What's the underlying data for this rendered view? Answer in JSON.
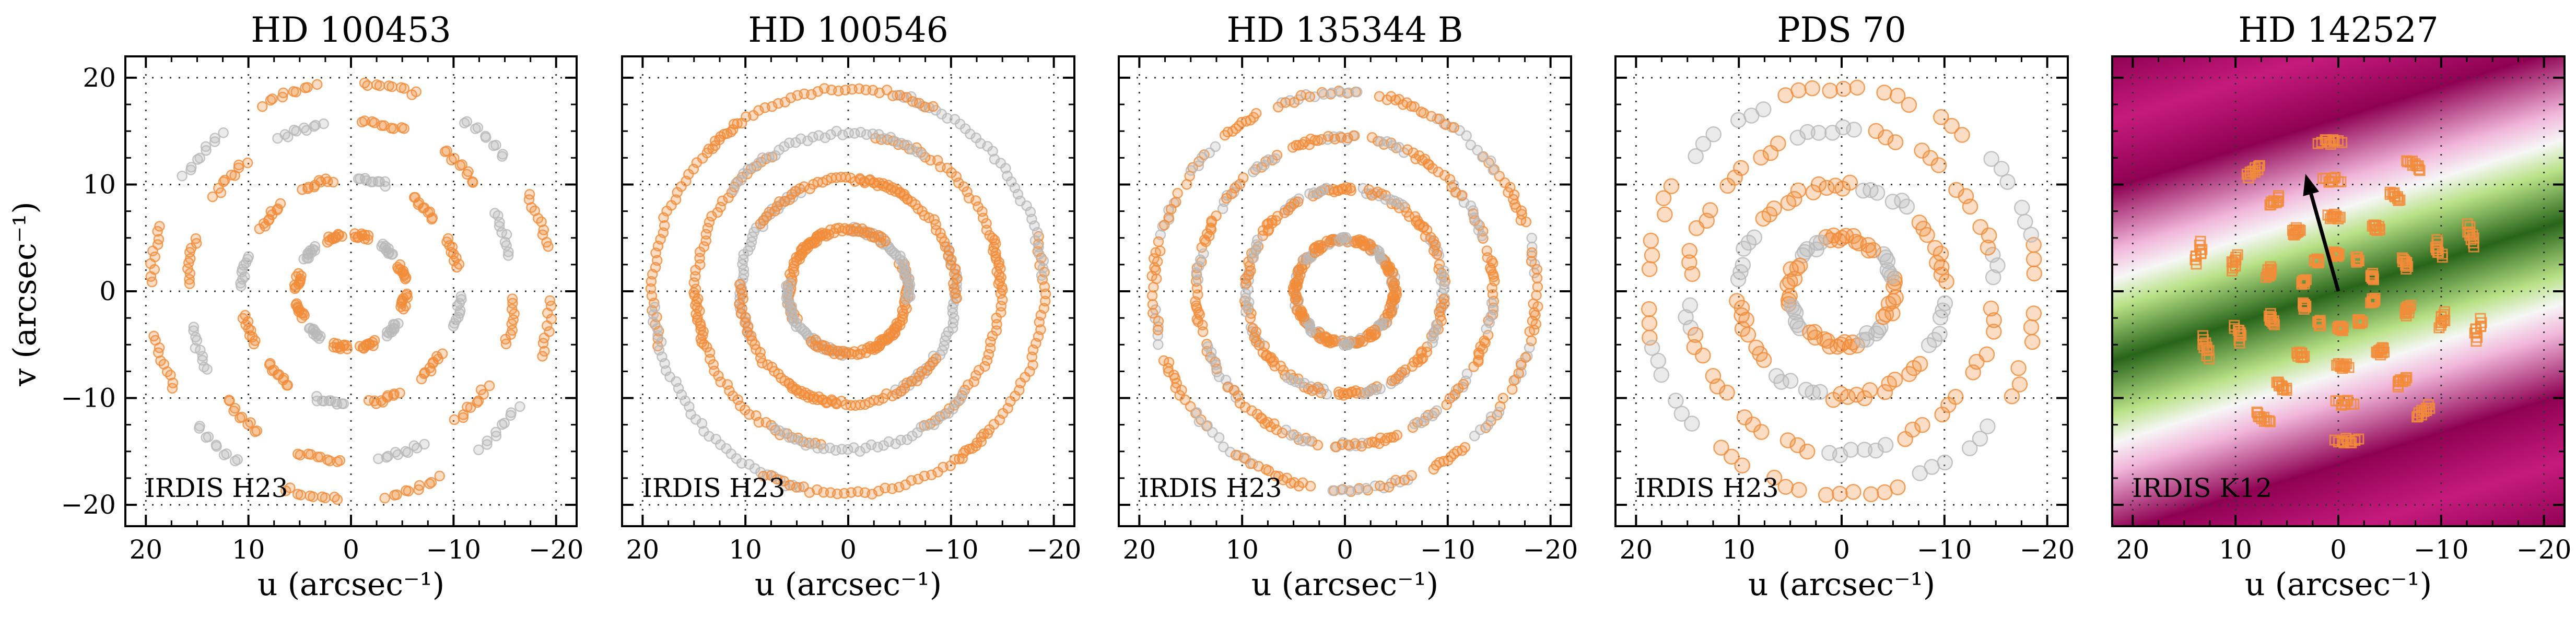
{
  "figure": {
    "ylabel": "v (arcsec⁻¹)",
    "xlabel": "u (arcsec⁻¹)"
  },
  "colors": {
    "orange": "#f28c3a",
    "gray": "#b9b9b9",
    "magenta": "#8e0152",
    "green": "#276419",
    "axis": "#000000"
  },
  "chart_data": [
    {
      "type": "scatter",
      "title": "HD 100453",
      "annotation": "IRDIS H23",
      "xlabel": "u (arcsec⁻¹)",
      "ylabel": "v (arcsec⁻¹)",
      "xlim": [
        22,
        -22
      ],
      "ylim": [
        -22,
        22
      ],
      "xticks": [
        20,
        10,
        0,
        -10,
        -20
      ],
      "yticks": [
        -20,
        -10,
        0,
        10,
        20
      ],
      "grid": true,
      "uv": {
        "radii": [
          5.3,
          10.6,
          15.9,
          19.5
        ],
        "arc_deg": 14,
        "n_pa": 12,
        "pa0_deg": 12,
        "marker": "circle",
        "style": "spaced"
      }
    },
    {
      "type": "scatter",
      "title": "HD 100546",
      "annotation": "IRDIS H23",
      "xlabel": "u (arcsec⁻¹)",
      "xlim": [
        22,
        -22
      ],
      "ylim": [
        -22,
        22
      ],
      "xticks": [
        20,
        10,
        0,
        -10,
        -20
      ],
      "yticks": [
        -20,
        -10,
        0,
        10,
        20
      ],
      "grid": true,
      "uv": {
        "radii": [
          5.8,
          10.5,
          14.8,
          19.0
        ],
        "arc_deg": 300,
        "n_pa": 3,
        "pa0_deg": 20,
        "marker": "circle",
        "style": "rings"
      }
    },
    {
      "type": "scatter",
      "title": "HD 135344 B",
      "annotation": "IRDIS H23",
      "xlabel": "u (arcsec⁻¹)",
      "xlim": [
        22,
        -22
      ],
      "ylim": [
        -22,
        22
      ],
      "xticks": [
        20,
        10,
        0,
        -10,
        -20
      ],
      "yticks": [
        -20,
        -10,
        0,
        10,
        20
      ],
      "grid": true,
      "uv": {
        "radii": [
          4.8,
          9.6,
          14.4,
          18.6
        ],
        "arc_deg": 10,
        "n_pa": 22,
        "pa0_deg": 8,
        "marker": "circle",
        "style": "dense"
      }
    },
    {
      "type": "scatter",
      "title": "PDS 70",
      "annotation": "IRDIS H23",
      "xlabel": "u (arcsec⁻¹)",
      "xlim": [
        22,
        -22
      ],
      "ylim": [
        -22,
        22
      ],
      "xticks": [
        20,
        10,
        0,
        -10,
        -20
      ],
      "yticks": [
        -20,
        -10,
        0,
        10,
        20
      ],
      "grid": true,
      "uv": {
        "radii": [
          5.0,
          10.0,
          15.0,
          19.0
        ],
        "arc_deg": 8,
        "n_pa": 11,
        "pa0_deg": 10,
        "marker": "circle",
        "style": "blobs"
      }
    },
    {
      "type": "scatter",
      "title": "HD 142527",
      "annotation": "IRDIS K12",
      "xlabel": "u (arcsec⁻¹)",
      "xlim": [
        22,
        -22
      ],
      "ylim": [
        -22,
        22
      ],
      "xticks": [
        20,
        10,
        0,
        -10,
        -20
      ],
      "yticks": [
        -20,
        -10,
        0,
        10,
        20
      ],
      "grid": true,
      "background": "sinusoidal visibility pattern (PiYG colormap)",
      "arrow": {
        "from": [
          0,
          0
        ],
        "to": [
          3.2,
          11.0
        ]
      },
      "uv": {
        "radii": [
          3.5,
          7.0,
          10.5,
          14.0
        ],
        "arc_deg": 6,
        "n_pa": 10,
        "pa0_deg": 15,
        "marker": "square",
        "style": "short"
      }
    }
  ]
}
